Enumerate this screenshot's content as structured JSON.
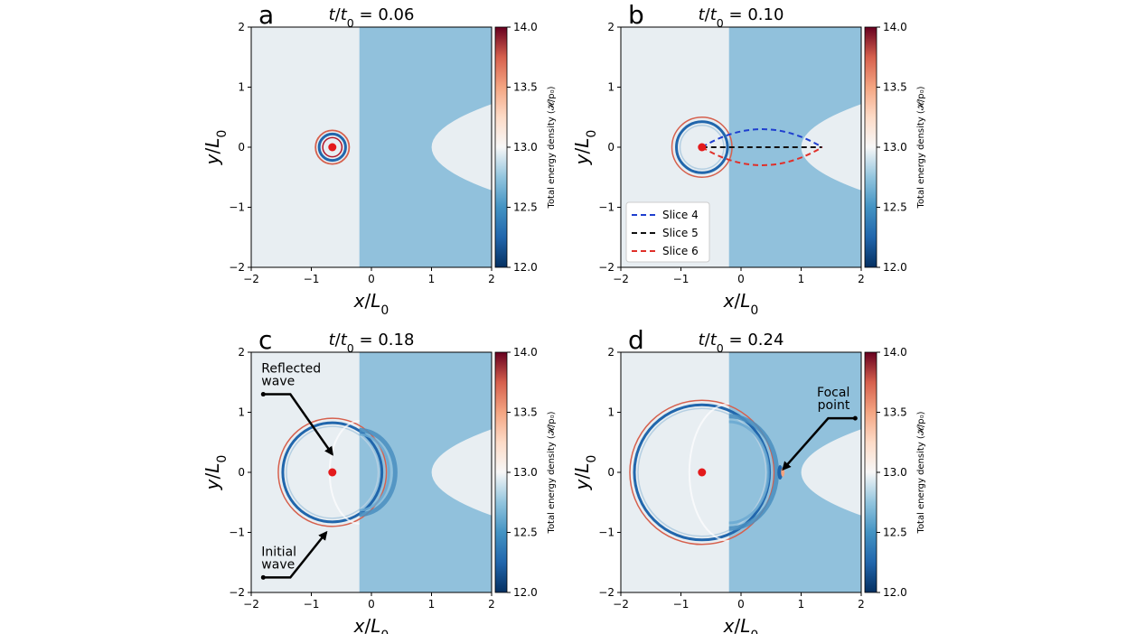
{
  "colors": {
    "left_region": "#e8eef2",
    "right_region": "#91c1dc",
    "red_wave": "#d6604d",
    "blue_wave": "#2166ac",
    "point": "#e31a1c"
  },
  "colorbar": {
    "label": "Total energy density (𝓗/p₀)",
    "ticks": [
      "12.0",
      "12.5",
      "13.0",
      "13.5",
      "14.0"
    ],
    "range": [
      12.0,
      14.0
    ],
    "colormap": "RdBu_r"
  },
  "axes_common": {
    "xlabel": "x/L₀",
    "ylabel": "y/L₀",
    "xlim": [
      -2,
      2
    ],
    "ylim": [
      -2,
      2
    ],
    "xticks": [
      "−2",
      "−1",
      "0",
      "1",
      "2"
    ],
    "yticks": [
      "−2",
      "−1",
      "0",
      "1",
      "2"
    ]
  },
  "chart_data": [
    {
      "type": "heatmap",
      "panel": "a",
      "title": "t/t₀ = 0.06",
      "source_point": [
        -0.65,
        0
      ],
      "interface_x": -0.2,
      "wavefront_radius": 0.28,
      "xlabel": "x/L₀",
      "ylabel": "y/L₀",
      "xlim": [
        -2,
        2
      ],
      "ylim": [
        -2,
        2
      ]
    },
    {
      "type": "heatmap",
      "panel": "b",
      "title": "t/t₀ = 0.10",
      "source_point": [
        -0.65,
        0
      ],
      "interface_x": -0.2,
      "wavefront_radius": 0.5,
      "xlabel": "x/L₀",
      "ylabel": "y/L₀",
      "xlim": [
        -2,
        2
      ],
      "ylim": [
        -2,
        2
      ],
      "legend_position": "lower-left",
      "series": [
        {
          "name": "Slice 4",
          "color": "#1f3fcf",
          "x": [
            -0.65,
            0.35,
            1.35
          ],
          "y": [
            0,
            0.3,
            0
          ]
        },
        {
          "name": "Slice 5",
          "color": "#111111",
          "x": [
            -0.65,
            1.35
          ],
          "y": [
            0,
            0
          ]
        },
        {
          "name": "Slice 6",
          "color": "#e0302a",
          "x": [
            -0.65,
            0.35,
            1.35
          ],
          "y": [
            0,
            -0.3,
            0
          ]
        }
      ]
    },
    {
      "type": "heatmap",
      "panel": "c",
      "title": "t/t₀ = 0.18",
      "source_point": [
        -0.65,
        0
      ],
      "interface_x": -0.2,
      "wavefront_radius": 0.9,
      "xlabel": "x/L₀",
      "ylabel": "y/L₀",
      "xlim": [
        -2,
        2
      ],
      "ylim": [
        -2,
        2
      ],
      "annotations": [
        {
          "text": [
            "Reflected",
            "wave"
          ],
          "text_at": [
            -1.8,
            1.3
          ],
          "arrow_to": [
            -0.65,
            0.3
          ]
        },
        {
          "text": [
            "Initial",
            "wave"
          ],
          "text_at": [
            -1.8,
            -1.75
          ],
          "arrow_to": [
            -0.75,
            -1.0
          ]
        }
      ]
    },
    {
      "type": "heatmap",
      "panel": "d",
      "title": "t/t₀ = 0.24",
      "source_point": [
        -0.65,
        0
      ],
      "interface_x": -0.2,
      "wavefront_radius": 1.2,
      "focal_point": [
        0.65,
        0
      ],
      "xlabel": "x/L₀",
      "ylabel": "y/L₀",
      "xlim": [
        -2,
        2
      ],
      "ylim": [
        -2,
        2
      ],
      "annotations": [
        {
          "text": [
            "Focal",
            "point"
          ],
          "text_at": [
            1.9,
            0.9
          ],
          "arrow_to": [
            0.7,
            0.05
          ]
        }
      ]
    }
  ]
}
